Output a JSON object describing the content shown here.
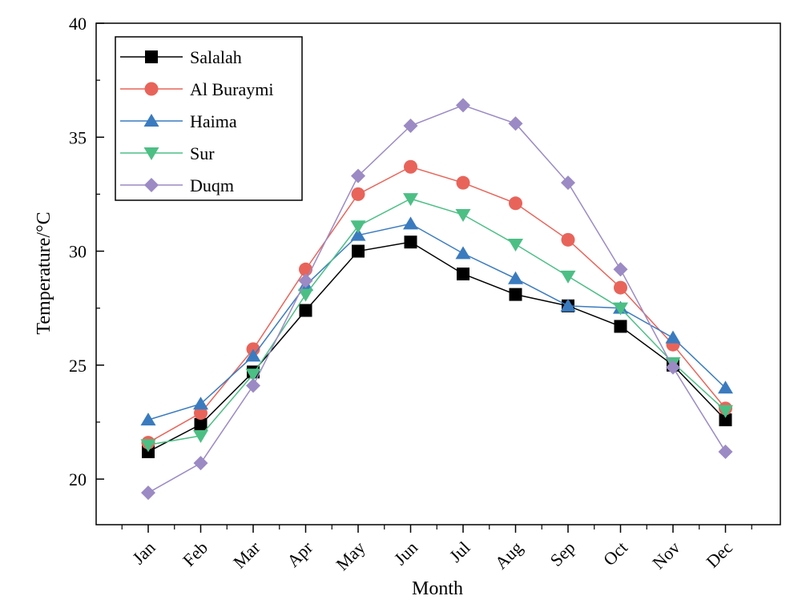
{
  "chart_data": {
    "type": "line",
    "title": "",
    "xlabel": "Month",
    "ylabel": "Temperature/°C",
    "categories": [
      "Jan",
      "Feb",
      "Mar",
      "Apr",
      "May",
      "Jun",
      "Jul",
      "Aug",
      "Sep",
      "Oct",
      "Nov",
      "Dec"
    ],
    "ylim": [
      18,
      40
    ],
    "yticks": [
      20,
      25,
      30,
      35,
      40
    ],
    "grid": false,
    "legend_position": "top-left",
    "series": [
      {
        "name": "Salalah",
        "color": "#000000",
        "marker": "square",
        "values": [
          21.2,
          22.4,
          24.7,
          27.4,
          30.0,
          30.4,
          29.0,
          28.1,
          27.6,
          26.7,
          25.0,
          22.6
        ]
      },
      {
        "name": "Al Buraymi",
        "color": "#e8645a",
        "marker": "circle",
        "values": [
          21.6,
          22.9,
          25.7,
          29.2,
          32.5,
          33.7,
          33.0,
          32.1,
          30.5,
          28.4,
          25.9,
          23.1
        ]
      },
      {
        "name": "Haima",
        "color": "#3a7bbf",
        "marker": "triangle-up",
        "values": [
          22.6,
          23.3,
          25.4,
          28.5,
          30.7,
          31.2,
          29.9,
          28.8,
          27.6,
          27.5,
          26.2,
          24.0
        ]
      },
      {
        "name": "Sur",
        "color": "#4cbf85",
        "marker": "triangle-down",
        "values": [
          21.5,
          21.9,
          24.6,
          28.1,
          31.1,
          32.3,
          31.6,
          30.3,
          28.9,
          27.5,
          25.1,
          23.0
        ]
      },
      {
        "name": "Duqm",
        "color": "#9b8ac4",
        "marker": "diamond",
        "values": [
          19.4,
          20.7,
          24.1,
          28.7,
          33.3,
          35.5,
          36.4,
          35.6,
          33.0,
          29.2,
          24.9,
          21.2
        ]
      }
    ]
  }
}
